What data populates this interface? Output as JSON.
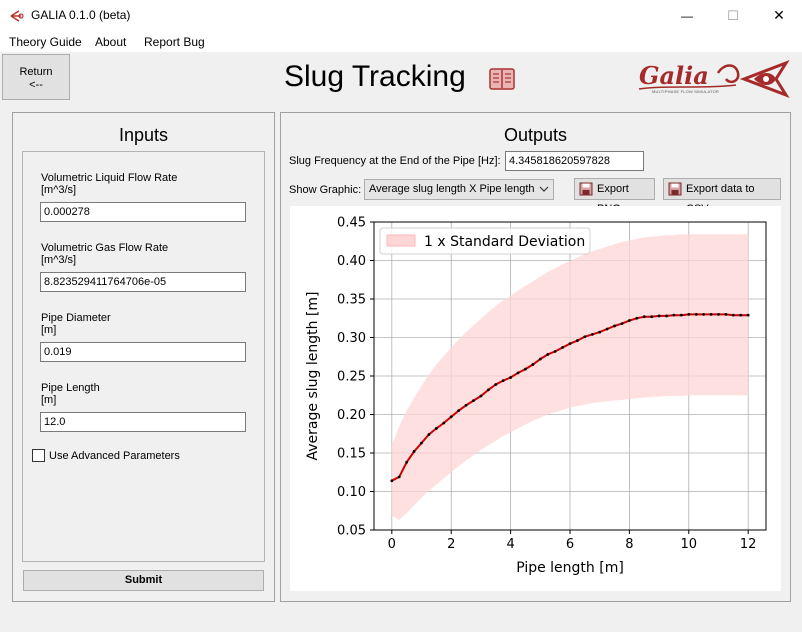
{
  "window": {
    "title": "GALIA 0.1.0 (beta)",
    "minimize_glyph": "—",
    "maximize_glyph": "☐",
    "close_glyph": "✕"
  },
  "menu": {
    "items": [
      "Theory Guide",
      "About",
      "Report Bug"
    ]
  },
  "return_button": {
    "line1": "Return",
    "line2": "<--"
  },
  "page_title": "Slug Tracking",
  "logo": {
    "text": "Galia",
    "subtext": "MULTIPHASE FLOW SIMULATOR"
  },
  "inputs": {
    "title": "Inputs",
    "fields": [
      {
        "label1": "Volumetric Liquid Flow Rate",
        "label2": "[m^3/s]",
        "value": "0.000278"
      },
      {
        "label1": "Volumetric Gas Flow Rate",
        "label2": "[m^3/s]",
        "value": "8.823529411764706e-05"
      },
      {
        "label1": "Pipe Diameter",
        "label2": "[m]",
        "value": "0.019"
      },
      {
        "label1": "Pipe Length",
        "label2": "[m]",
        "value": "12.0"
      }
    ],
    "advanced_checkbox": {
      "label": "Use Advanced Parameters",
      "checked": false
    },
    "submit_label": "Submit"
  },
  "outputs": {
    "title": "Outputs",
    "frequency_label": "Slug Frequency at the End of the Pipe [Hz]:",
    "frequency_value": "4.345818620597828",
    "show_graphic_label": "Show Graphic:",
    "graphic_selected": "Average slug length X  Pipe length",
    "export_png_label": "Export PNG",
    "export_csv_label": "Export data to CSV"
  },
  "colors": {
    "line": "#cc0000",
    "band": "#ffd6d6",
    "marker": "#000000"
  },
  "chart_data": {
    "type": "line",
    "title": "",
    "xlabel": "Pipe length [m]",
    "ylabel": "Average slug length [m]",
    "xlim": [
      -0.6,
      12.6
    ],
    "ylim": [
      0.05,
      0.45
    ],
    "xticks": [
      0,
      2,
      4,
      6,
      8,
      10,
      12
    ],
    "yticks": [
      0.05,
      0.1,
      0.15,
      0.2,
      0.25,
      0.3,
      0.35,
      0.4,
      0.45
    ],
    "ytick_labels": [
      "0.05",
      "0.10",
      "0.15",
      "0.20",
      "0.25",
      "0.30",
      "0.35",
      "0.40",
      "0.45"
    ],
    "grid": true,
    "legend": {
      "placement": "top-left",
      "entries": [
        "1 x Standard Deviation"
      ]
    },
    "x": [
      0,
      0.25,
      0.5,
      0.75,
      1.0,
      1.25,
      1.5,
      1.75,
      2.0,
      2.25,
      2.5,
      2.75,
      3.0,
      3.25,
      3.5,
      3.75,
      4.0,
      4.25,
      4.5,
      4.75,
      5.0,
      5.25,
      5.5,
      5.75,
      6.0,
      6.25,
      6.5,
      6.75,
      7.0,
      7.25,
      7.5,
      7.75,
      8.0,
      8.25,
      8.5,
      8.75,
      9.0,
      9.25,
      9.5,
      9.75,
      10.0,
      10.25,
      10.5,
      10.75,
      11.0,
      11.25,
      11.5,
      11.75,
      12.0
    ],
    "series": [
      {
        "mean": [
          0.114,
          0.119,
          0.138,
          0.152,
          0.163,
          0.174,
          0.182,
          0.189,
          0.197,
          0.205,
          0.212,
          0.218,
          0.224,
          0.232,
          0.239,
          0.244,
          0.248,
          0.254,
          0.259,
          0.265,
          0.272,
          0.278,
          0.282,
          0.287,
          0.292,
          0.296,
          0.301,
          0.304,
          0.307,
          0.311,
          0.315,
          0.318,
          0.322,
          0.325,
          0.327,
          0.327,
          0.328,
          0.328,
          0.329,
          0.329,
          0.33,
          0.33,
          0.33,
          0.33,
          0.33,
          0.33,
          0.329,
          0.329,
          0.329
        ],
        "upper": [
          0.16,
          0.185,
          0.205,
          0.222,
          0.237,
          0.252,
          0.265,
          0.276,
          0.287,
          0.297,
          0.307,
          0.316,
          0.324,
          0.333,
          0.341,
          0.348,
          0.354,
          0.361,
          0.367,
          0.373,
          0.379,
          0.385,
          0.39,
          0.395,
          0.399,
          0.404,
          0.408,
          0.412,
          0.415,
          0.418,
          0.421,
          0.424,
          0.426,
          0.428,
          0.43,
          0.431,
          0.432,
          0.433,
          0.433,
          0.434,
          0.434,
          0.434,
          0.434,
          0.434,
          0.434,
          0.434,
          0.434,
          0.434,
          0.434
        ],
        "lower": [
          0.068,
          0.063,
          0.072,
          0.082,
          0.092,
          0.101,
          0.109,
          0.117,
          0.125,
          0.133,
          0.14,
          0.147,
          0.154,
          0.16,
          0.166,
          0.172,
          0.177,
          0.182,
          0.187,
          0.192,
          0.196,
          0.2,
          0.203,
          0.206,
          0.209,
          0.211,
          0.213,
          0.215,
          0.216,
          0.217,
          0.218,
          0.219,
          0.22,
          0.221,
          0.222,
          0.223,
          0.223,
          0.224,
          0.224,
          0.224,
          0.225,
          0.225,
          0.225,
          0.225,
          0.225,
          0.225,
          0.225,
          0.225,
          0.225
        ]
      }
    ]
  }
}
